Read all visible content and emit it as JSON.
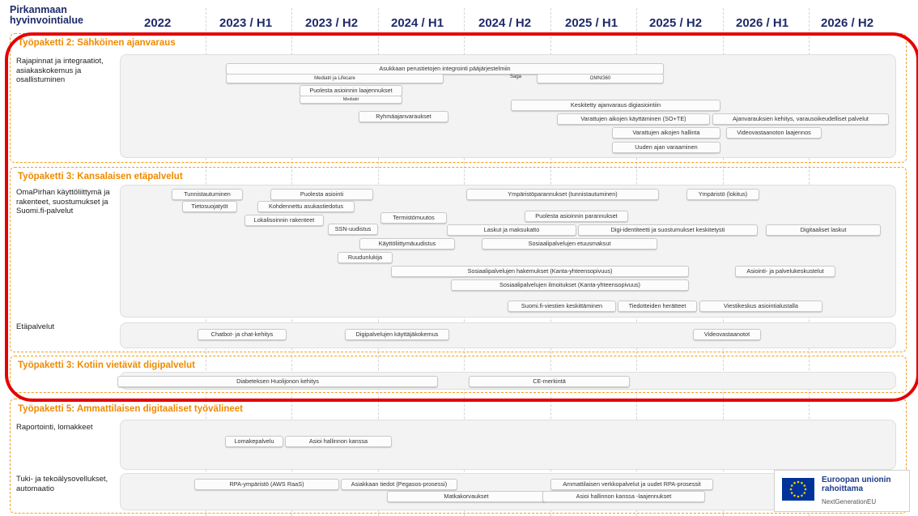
{
  "org_title": "Pirkanmaan hyvinvointialue",
  "columns": [
    "2022",
    "2023 / H1",
    "2023 / H2",
    "2024 / H1",
    "2024 / H2",
    "2025 / H1",
    "2025 / H2",
    "2026 / H1",
    "2026 / H2"
  ],
  "work_packages": {
    "wp2": {
      "title": "Työpaketti 2: Sähköinen ajanvaraus",
      "lane1_label": "Rajapinnat ja integraatiot, asiakaskokemus ja osallistuminen",
      "items": {
        "integration": "Asukkaan perustietojen integrointi pääjärjestelmiin",
        "mediatri_lifecare": "Mediatri ja Lifecare",
        "saga": "Saga",
        "omni": "OMNI360",
        "laajennukset": "Puolesta asioinnin laajennukset",
        "mediatri": "Mediatri",
        "ryhma": "Ryhmäajanvaraukset",
        "keskitetty": "Keskitetty ajanvaraus digiasiointiin",
        "varattujen_kaytt": "Varattujen aikojen käyttäminen (SO+TE)",
        "kehitys": "Ajanvarauksien kehitys, varausoikeudelliset palvelut",
        "hallinta": "Varattujen aikojen hallinta",
        "video_laaj": "Videovastaanoton laajennos",
        "uuden_ajan": "Uuden ajan varaaminen"
      }
    },
    "wp3": {
      "title": "Työpaketti 3: Kansalaisen etäpalvelut",
      "lane1_label": "OmaPirhan käyttöliittymä ja rakenteet, suostumukset ja Suomi.fi-palvelut",
      "lane2_label": "Etäpalvelut",
      "items": {
        "tunnistautuminen": "Tunnistautuminen",
        "puolesta": "Puolesta asiointi",
        "ymp_parannukset": "Ympäristöparannukset (tunnistautuminen)",
        "ymp_lokitus": "Ympäristö (lokitus)",
        "tietosuoja": "Tietosuojatyöt",
        "kohdennettu": "Kohdennettu asukastiedotus",
        "lokalisointi": "Lokalisoinnin rakenteet",
        "termisto": "Termistömuutos",
        "puolesta_parannukset": "Puolesta asioinnin parannukset",
        "ssn": "SSN-uudistus",
        "laskut": "Laskut ja maksukatto",
        "digi_ident": "Digi-identiteetti ja suostumukset keskitetysti",
        "digitaaliset_laskut": "Digitaaliset laskut",
        "kayttoliittyma": "Käyttöliittymäuudistus",
        "etuusmaksut": "Sosiaalipalvelujen etuusmaksut",
        "ruudunlukija": "Ruudunlukija",
        "hakemukset": "Sosiaalipalvelujen hakemukset (Kanta-yhteensopivuus)",
        "asiointikeskustelu": "Asiointi- ja palvelukeskustelut",
        "ilmoitukset": "Sosiaalipalvelujen ilmoitukset (Kanta-yhteensopivuus)",
        "suomifi": "Suomi.fi-viestien keskittäminen",
        "tiedotteiden": "Tiedotteiden herätteet",
        "viestikeskus": "Viestikeskus asiointialustalla",
        "chatbot": "Chatbot- ja chat-kehitys",
        "digipalvelujen": "Digipalvelujen käyttäjäkokemus",
        "videovastaanotot": "Videovastaanotot"
      }
    },
    "wp3b": {
      "title": "Työpaketti 3: Kotiin vietävät digipalvelut",
      "items": {
        "diabetes": "Diabeteksen Huolijonon kehitys",
        "ce": "CE-merkintä"
      }
    },
    "wp5": {
      "title": "Työpaketti 5: Ammattilaisen digitaaliset työvälineet",
      "lane1_label": "Raportointi, lomakkeet",
      "lane2_label": "Tuki- ja tekoälysovellukset, automaatio",
      "items": {
        "lomake": "Lomakepalvelu",
        "asioi_hallinnon": "Asioi hallinnon kanssa",
        "rpa": "RPA-ympäristö (AWS RaaS)",
        "asiakkaan": "Asiakkaan tiedot (Pegasos-prosessi)",
        "matkakorvaukset": "Matkakorvaukset",
        "ammatillaisen": "Ammattilaisen verkkopalvelut ja uudet RPA-prosessit",
        "asioi_laaj": "Asioi hallinnon kanssa -laajennukset"
      }
    }
  },
  "eu": {
    "line1": "Euroopan unionin rahoittama",
    "line2": "NextGenerationEU"
  },
  "colors": {
    "title": "#1f2a6b",
    "wp_title": "#f08a00",
    "highlight": "#e30000",
    "eu_blue": "#003399",
    "eu_star": "#ffcc00"
  }
}
